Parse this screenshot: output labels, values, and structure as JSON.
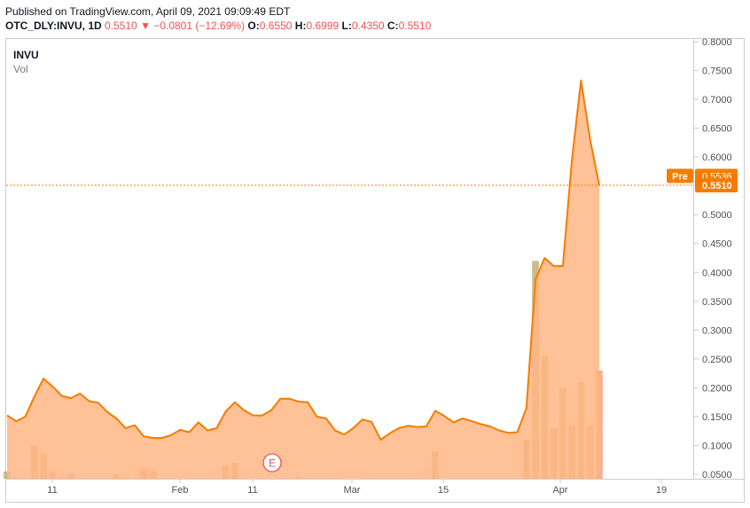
{
  "header": {
    "published": "Published on TradingView.com, April 09, 2021 09:09:49 EDT",
    "symbol": "OTC_DLY:INVU, 1D",
    "last": "0.5510",
    "change_arrow": "▼",
    "change": "−0.0801 (−12.69%)",
    "o_label": "O:",
    "o_value": "0.6550",
    "h_label": "H:",
    "h_value": "0.6999",
    "l_label": "L:",
    "l_value": "0.4350",
    "c_label": "C:",
    "c_value": "0.5510"
  },
  "pane": {
    "symbol_label": "INVU",
    "volume_label": "Vol"
  },
  "earnings_marker": "E",
  "colors": {
    "line": "#f57c00",
    "fill": "#ffb682",
    "volume_up": "#c9b27f",
    "volume_down": "#f8a582",
    "axis_text": "#505050",
    "down": "#ef5350"
  },
  "chart_data": {
    "type": "area",
    "x_tick_labels": [
      "11",
      "Feb",
      "11",
      "Mar",
      "15",
      "Apr",
      "19"
    ],
    "y_tick_labels": [
      "0.0500",
      "0.1000",
      "0.1500",
      "0.2000",
      "0.2500",
      "0.3000",
      "0.3500",
      "0.4000",
      "0.4500",
      "0.5000",
      "0.5500",
      "0.6000",
      "0.6500",
      "0.7000",
      "0.7500",
      "0.8000"
    ],
    "ylim": [
      0.05,
      0.8
    ],
    "grid": false,
    "price_labels": [
      {
        "tag": "Pre",
        "value": "0.5536"
      },
      {
        "tag": "",
        "value": "0.5510"
      }
    ],
    "last_price": 0.551,
    "series": [
      {
        "name": "INVU",
        "values": [
          0.152,
          0.142,
          0.15,
          0.185,
          0.216,
          0.202,
          0.186,
          0.182,
          0.19,
          0.177,
          0.174,
          0.158,
          0.147,
          0.13,
          0.135,
          0.116,
          0.113,
          0.113,
          0.118,
          0.127,
          0.123,
          0.14,
          0.126,
          0.13,
          0.159,
          0.175,
          0.161,
          0.152,
          0.152,
          0.161,
          0.181,
          0.181,
          0.176,
          0.175,
          0.15,
          0.147,
          0.126,
          0.119,
          0.13,
          0.145,
          0.141,
          0.11,
          0.121,
          0.13,
          0.134,
          0.132,
          0.133,
          0.16,
          0.151,
          0.14,
          0.147,
          0.142,
          0.137,
          0.133,
          0.126,
          0.122,
          0.123,
          0.165,
          0.388,
          0.425,
          0.411,
          0.411,
          0.596,
          0.733,
          0.63,
          0.551
        ]
      },
      {
        "name": "Vol",
        "values": [
          0.055,
          0.045,
          0.03,
          0.1,
          0.085,
          0.055,
          0.045,
          0.05,
          0.04,
          0.035,
          0.03,
          0.028,
          0.05,
          0.045,
          0.04,
          0.06,
          0.055,
          0.03,
          0.03,
          0.035,
          0.03,
          0.035,
          0.03,
          0.04,
          0.065,
          0.07,
          0.04,
          0.035,
          0.03,
          0.03,
          0.035,
          0.04,
          0.045,
          0.035,
          0.03,
          0.03,
          0.025,
          0.025,
          0.02,
          0.03,
          0.03,
          0.025,
          0.03,
          0.025,
          0.025,
          0.02,
          0.03,
          0.09,
          0.03,
          0.02,
          0.02,
          0.02,
          0.02,
          0.02,
          0.02,
          0.015,
          0.02,
          0.11,
          0.42,
          0.255,
          0.13,
          0.2,
          0.135,
          0.21,
          0.135,
          0.23
        ]
      }
    ]
  }
}
